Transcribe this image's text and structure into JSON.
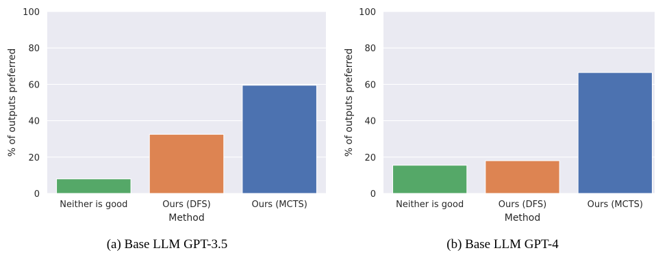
{
  "chart_data": [
    {
      "type": "bar",
      "caption": "(a) Base LLM GPT-3.5",
      "xlabel": "Method",
      "ylabel": "% of outputs preferred",
      "categories": [
        "Neither is good",
        "Ours (DFS)",
        "Ours (MCTS)"
      ],
      "values": [
        8,
        32.5,
        59.5
      ],
      "colors": [
        "#55a868",
        "#dd8452",
        "#4c72b0"
      ],
      "ylim": [
        0,
        100
      ],
      "yticks": [
        0,
        20,
        40,
        60,
        80,
        100
      ],
      "grid": true
    },
    {
      "type": "bar",
      "caption": "(b) Base LLM GPT-4",
      "xlabel": "Method",
      "ylabel": "% of outputs preferred",
      "categories": [
        "Neither is good",
        "Ours (DFS)",
        "Ours (MCTS)"
      ],
      "values": [
        15.5,
        18,
        66.5
      ],
      "colors": [
        "#55a868",
        "#dd8452",
        "#4c72b0"
      ],
      "ylim": [
        0,
        100
      ],
      "yticks": [
        0,
        20,
        40,
        60,
        80,
        100
      ],
      "grid": true
    }
  ]
}
